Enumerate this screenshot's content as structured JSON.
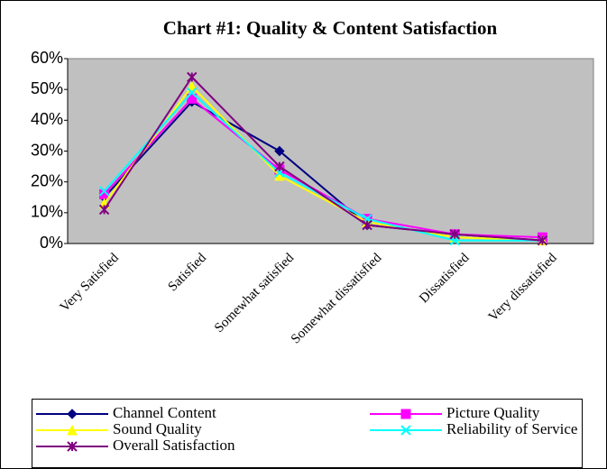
{
  "chart_data": {
    "type": "line",
    "title": "Chart #1: Quality & Content Satisfaction",
    "categories": [
      "Very Satisfied",
      "Satisfied",
      "Somewhat satisfied",
      "Somewhat dissatisfied",
      "Dissatisfied",
      "Very dissatisfied"
    ],
    "series": [
      {
        "name": "Channel Content",
        "color": "#000080",
        "marker": "diamond",
        "values": [
          15,
          46,
          30,
          6,
          3,
          1
        ]
      },
      {
        "name": "Picture Quality",
        "color": "#ff00ff",
        "marker": "square",
        "values": [
          16,
          47,
          24,
          8,
          3,
          2
        ]
      },
      {
        "name": "Sound Quality",
        "color": "#ffff00",
        "marker": "triangle",
        "values": [
          13,
          51,
          22,
          7,
          2,
          1
        ]
      },
      {
        "name": "Reliability of Service",
        "color": "#00ffff",
        "marker": "x",
        "values": [
          17,
          49,
          23,
          8,
          1,
          1
        ]
      },
      {
        "name": "Overall Satisfaction",
        "color": "#800080",
        "marker": "asterisk",
        "values": [
          11,
          54,
          25,
          6,
          3,
          1
        ]
      }
    ],
    "ylim": [
      0,
      60
    ],
    "yticks": [
      {
        "value": 0,
        "label": "0%"
      },
      {
        "value": 10,
        "label": "10%"
      },
      {
        "value": 20,
        "label": "20%"
      },
      {
        "value": 30,
        "label": "30%"
      },
      {
        "value": 40,
        "label": "40%"
      },
      {
        "value": 50,
        "label": "50%"
      },
      {
        "value": 60,
        "label": "60%"
      }
    ],
    "grid": false,
    "legend": "bottom",
    "plot_background": "#c0c0c0"
  }
}
